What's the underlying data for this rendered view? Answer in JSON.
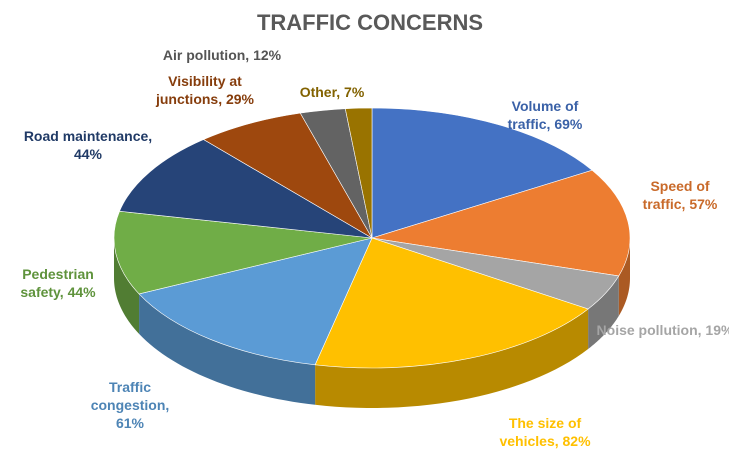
{
  "chart_data": {
    "type": "pie",
    "title": "TRAFFIC CONCERNS",
    "values": [
      69,
      57,
      19,
      82,
      61,
      44,
      44,
      29,
      12,
      7
    ],
    "value_labels": [
      "Volume of traffic, 69%",
      "Speed of traffic, 57%",
      "Noise pollution, 19%",
      "The size of vehicles, 82%",
      "Traffic congestion, 61%",
      "Pedestrian safety, 44%",
      "Road maintenance, 44%",
      "Visibility at junctions, 29%",
      "Air pollution, 12%",
      "Other, 7%"
    ],
    "colors": [
      "#4472c4",
      "#ed7d31",
      "#a5a5a5",
      "#ffc000",
      "#5b9bd5",
      "#70ad47",
      "#264478",
      "#9e480e",
      "#636363",
      "#997300"
    ]
  }
}
